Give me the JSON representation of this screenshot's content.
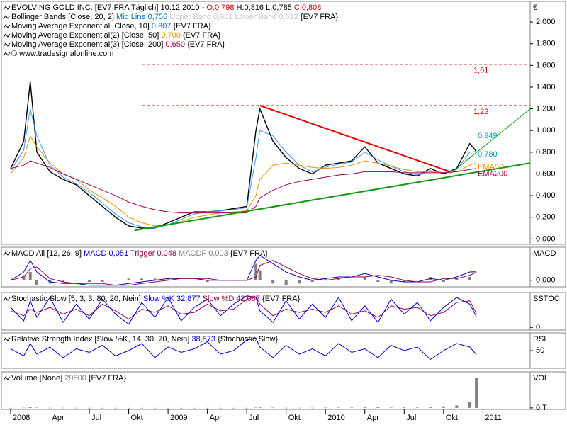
{
  "chart_data": [
    {
      "type": "line",
      "legend": [
        [
          {
            "text": "EVOLVING GOLD INC. [EV7 FRA Täglich] 10.12.2010 - ",
            "color": "#000"
          },
          {
            "text": "O:0,798",
            "color": "#c00"
          },
          {
            "text": " H:0,816 L:0,785 ",
            "color": "#000"
          },
          {
            "text": "C:0,808",
            "color": "#c00"
          }
        ],
        [
          {
            "text": "Bollinger Bands [Close, 20, 2] ",
            "color": "#000"
          },
          {
            "text": "Mid Line 0,756",
            "color": "#0070c0"
          },
          {
            "text": " Upper Band 0,901 Lower Band 0,612",
            "color": "#c8c8c8"
          },
          {
            "text": " {EV7 FRA}",
            "color": "#000"
          }
        ],
        [
          {
            "text": "Moving Average Exponential [Close, 10] ",
            "color": "#000"
          },
          {
            "text": "0,807",
            "color": "#0070c0"
          },
          {
            "text": " {EV7 FRA}",
            "color": "#000"
          }
        ],
        [
          {
            "text": "Moving Average Exponential(2) [Close, 50] ",
            "color": "#000"
          },
          {
            "text": "0,700",
            "color": "#e69500"
          },
          {
            "text": " {EV7 FRA}",
            "color": "#000"
          }
        ],
        [
          {
            "text": "Moving Average Exponential(3) [Close, 200] ",
            "color": "#000"
          },
          {
            "text": "0,650",
            "color": "#99004d"
          },
          {
            "text": " {EV7 FRA}",
            "color": "#000"
          }
        ],
        [
          {
            "text": "© www.tradesignalonline.com",
            "color": "#000"
          }
        ]
      ],
      "axis_label": "€",
      "xlim": [
        -0.7,
        39.6
      ],
      "ylim": [
        -0.05,
        2.19
      ],
      "yticks": [
        {
          "value": 0,
          "label": "0,000"
        },
        {
          "value": 0.2,
          "label": "0,200"
        },
        {
          "value": 0.4,
          "label": "0,400"
        },
        {
          "value": 0.6,
          "label": "0,600"
        },
        {
          "value": 0.8,
          "label": "0,800"
        },
        {
          "value": 1.0,
          "label": "1,000"
        },
        {
          "value": 1.2,
          "label": "1,200"
        },
        {
          "value": 1.4,
          "label": "1,400"
        },
        {
          "value": 1.6,
          "label": "1,600"
        },
        {
          "value": 1.8,
          "label": "1,800"
        },
        {
          "value": 2.0,
          "label": "2,000"
        }
      ],
      "x": [
        0,
        1,
        1.5,
        2,
        3,
        4,
        5,
        6,
        7,
        8,
        9,
        10,
        11,
        12,
        13,
        14,
        15,
        16,
        17,
        18,
        18.7,
        19,
        20,
        21,
        22,
        23,
        24,
        25,
        26,
        27,
        28,
        29,
        30,
        31,
        32,
        33,
        34,
        35,
        35.5
      ],
      "series": [
        {
          "color": "#000000",
          "values": [
            0.65,
            0.9,
            1.45,
            0.8,
            0.62,
            0.55,
            0.5,
            0.4,
            0.3,
            0.2,
            0.12,
            0.1,
            0.1,
            0.15,
            0.2,
            0.25,
            0.25,
            0.26,
            0.28,
            0.3,
            1.0,
            1.2,
            0.9,
            0.75,
            0.65,
            0.6,
            0.68,
            0.7,
            0.72,
            0.85,
            0.7,
            0.65,
            0.6,
            0.58,
            0.65,
            0.6,
            0.65,
            0.88,
            0.808
          ]
        },
        {
          "color": "#3399ff",
          "values": [
            0.63,
            0.82,
            1.2,
            0.95,
            0.68,
            0.57,
            0.51,
            0.43,
            0.33,
            0.23,
            0.15,
            0.11,
            0.1,
            0.13,
            0.18,
            0.23,
            0.25,
            0.26,
            0.27,
            0.29,
            0.75,
            1.0,
            0.95,
            0.8,
            0.68,
            0.62,
            0.66,
            0.69,
            0.71,
            0.8,
            0.73,
            0.67,
            0.62,
            0.59,
            0.63,
            0.61,
            0.64,
            0.8,
            0.807
          ]
        },
        {
          "color": "#e69500",
          "values": [
            0.6,
            0.75,
            0.95,
            0.85,
            0.7,
            0.6,
            0.55,
            0.45,
            0.38,
            0.3,
            0.2,
            0.15,
            0.12,
            0.13,
            0.16,
            0.2,
            0.22,
            0.24,
            0.25,
            0.26,
            0.4,
            0.55,
            0.68,
            0.7,
            0.68,
            0.66,
            0.65,
            0.66,
            0.68,
            0.72,
            0.7,
            0.67,
            0.64,
            0.62,
            0.62,
            0.61,
            0.62,
            0.68,
            0.7
          ]
        },
        {
          "color": "#99004d",
          "values": [
            0.65,
            0.68,
            0.72,
            0.7,
            0.66,
            0.6,
            0.55,
            0.5,
            0.45,
            0.4,
            0.34,
            0.3,
            0.27,
            0.25,
            0.24,
            0.24,
            0.24,
            0.24,
            0.24,
            0.24,
            0.3,
            0.38,
            0.45,
            0.5,
            0.53,
            0.55,
            0.57,
            0.59,
            0.6,
            0.62,
            0.62,
            0.62,
            0.61,
            0.61,
            0.61,
            0.61,
            0.62,
            0.64,
            0.65
          ]
        }
      ],
      "hlines": [
        {
          "value": 1.61,
          "label": "1,61",
          "color": "#cc0000"
        },
        {
          "value": 1.23,
          "label": "1,23",
          "color": "#cc0000"
        }
      ],
      "trendlines": [
        {
          "color": "#ee0000",
          "x": [
            19,
            33.5
          ],
          "y": [
            1.23,
            0.62
          ]
        },
        {
          "color": "#119911",
          "x": [
            9.5,
            39.6
          ],
          "y": [
            0.08,
            0.7
          ]
        },
        {
          "color": "#119911",
          "x": [
            33.5,
            39.6
          ],
          "y": [
            0.6,
            1.2
          ]
        }
      ],
      "annotations": [
        {
          "value": 0.949,
          "label": "0,949",
          "color": "#00a0c0"
        },
        {
          "value": 0.78,
          "label": "0,780",
          "color": "#00a0c0"
        },
        {
          "value": 0.66,
          "label": "EMA50",
          "color": "#e69500"
        },
        {
          "value": 0.6,
          "label": "EMA200",
          "color": "#99004d"
        }
      ]
    },
    {
      "type": "line",
      "legend": [
        [
          {
            "text": "MACD All [12, 26, 9] ",
            "color": "#000"
          },
          {
            "text": "MACD 0,051",
            "color": "#0000cc"
          },
          {
            "text": " Trigger 0,048",
            "color": "#99004d"
          },
          {
            "text": " MACDF 0,003",
            "color": "#808080"
          },
          {
            "text": " {EV7 FRA}",
            "color": "#000"
          }
        ]
      ],
      "axis_label": "MACD",
      "xlim": [
        -0.7,
        39.6
      ],
      "ylim": [
        -0.04,
        0.2
      ],
      "yticks": [
        {
          "value": 0,
          "label": "0,000"
        }
      ],
      "x": [
        0,
        1,
        1.5,
        2,
        3,
        4,
        5,
        6,
        7,
        8,
        9,
        10,
        11,
        12,
        13,
        14,
        15,
        16,
        17,
        18,
        18.7,
        19,
        20,
        21,
        22,
        23,
        24,
        25,
        26,
        27,
        28,
        29,
        30,
        31,
        32,
        33,
        34,
        35,
        35.5
      ],
      "series": [
        {
          "kind": "bar",
          "color": "#808080",
          "values": [
            0,
            0.03,
            0.05,
            -0.03,
            -0.02,
            -0.01,
            0,
            -0.01,
            -0.01,
            0,
            0.01,
            0.01,
            0.01,
            0.01,
            0,
            0,
            -0.01,
            0,
            0,
            0,
            0.1,
            0.06,
            -0.02,
            -0.03,
            -0.02,
            -0.01,
            0.01,
            0.01,
            0,
            0.02,
            -0.01,
            -0.02,
            -0.01,
            0,
            0.02,
            -0.01,
            0.01,
            0.02,
            0.003
          ]
        },
        {
          "color": "#0000cc",
          "values": [
            0,
            0.05,
            0.12,
            0.05,
            -0.01,
            -0.02,
            -0.02,
            -0.03,
            -0.03,
            -0.03,
            -0.02,
            -0.01,
            0,
            0.01,
            0.01,
            0.01,
            0,
            0,
            0,
            0,
            0.12,
            0.15,
            0.1,
            0.05,
            0.02,
            0,
            0.01,
            0.02,
            0.02,
            0.04,
            0.02,
            0,
            -0.01,
            -0.01,
            0.01,
            0,
            0.02,
            0.05,
            0.051
          ]
        },
        {
          "color": "#99004d",
          "values": [
            0,
            0.02,
            0.07,
            0.08,
            0.01,
            -0.01,
            -0.02,
            -0.02,
            -0.02,
            -0.03,
            -0.03,
            -0.02,
            -0.01,
            0,
            0.01,
            0.01,
            0.01,
            0,
            0,
            0,
            0.02,
            0.09,
            0.12,
            0.08,
            0.04,
            0.01,
            0,
            0.01,
            0.02,
            0.02,
            0.03,
            0.02,
            0,
            -0.01,
            -0.01,
            0.01,
            0.01,
            0.03,
            0.048
          ]
        }
      ]
    },
    {
      "type": "line",
      "legend": [
        [
          {
            "text": "Stochastic Slow [5, 3, 3, 80, 20, Nein] ",
            "color": "#000"
          },
          {
            "text": "Slow %K 32,877",
            "color": "#0000cc"
          },
          {
            "text": " Slow %D 42,067",
            "color": "#99004d"
          },
          {
            "text": " {EV7 FRA}",
            "color": "#000"
          }
        ]
      ],
      "axis_label": "SSTOC",
      "xlim": [
        -0.7,
        39.6
      ],
      "ylim": [
        -8,
        105
      ],
      "yticks": [
        0
      ],
      "x": [
        0,
        1,
        1.5,
        2,
        3,
        4,
        5,
        6,
        7,
        8,
        9,
        10,
        11,
        12,
        13,
        14,
        15,
        16,
        17,
        18,
        18.7,
        19,
        20,
        21,
        22,
        23,
        24,
        25,
        26,
        27,
        28,
        29,
        30,
        31,
        32,
        33,
        34,
        35,
        35.5
      ],
      "series": [
        {
          "color": "#99004d",
          "values": [
            50,
            35,
            55,
            45,
            60,
            40,
            55,
            35,
            70,
            50,
            25,
            55,
            45,
            65,
            40,
            45,
            70,
            50,
            55,
            85,
            92,
            70,
            35,
            55,
            45,
            55,
            45,
            65,
            40,
            50,
            30,
            65,
            55,
            60,
            35,
            45,
            75,
            80,
            42
          ]
        },
        {
          "color": "#0000cc",
          "values": [
            60,
            20,
            80,
            30,
            90,
            15,
            70,
            25,
            85,
            40,
            10,
            75,
            30,
            90,
            20,
            60,
            85,
            35,
            70,
            95,
            90,
            50,
            15,
            80,
            25,
            70,
            30,
            90,
            20,
            65,
            15,
            85,
            40,
            75,
            20,
            60,
            90,
            70,
            33
          ]
        }
      ]
    },
    {
      "type": "line",
      "legend": [
        [
          {
            "text": "Relative Strength Index [Slow %K, 14, 30, 70, Nein] ",
            "color": "#000"
          },
          {
            "text": "38,873",
            "color": "#0000cc"
          },
          {
            "text": " {Stochastic Slow}",
            "color": "#000"
          }
        ]
      ],
      "axis_label": "RSI",
      "xlim": [
        -0.7,
        39.6
      ],
      "ylim": [
        0,
        100
      ],
      "yticks": [
        50
      ],
      "x": [
        0,
        1,
        1.5,
        2,
        3,
        4,
        5,
        6,
        7,
        8,
        9,
        10,
        11,
        12,
        13,
        14,
        15,
        16,
        17,
        18,
        18.7,
        19,
        20,
        21,
        22,
        23,
        24,
        25,
        26,
        27,
        28,
        29,
        30,
        31,
        32,
        33,
        34,
        35,
        35.5
      ],
      "series": [
        {
          "color": "#0000cc",
          "values": [
            55,
            35,
            70,
            40,
            60,
            30,
            55,
            45,
            65,
            35,
            50,
            70,
            30,
            60,
            45,
            55,
            75,
            40,
            50,
            80,
            85,
            60,
            30,
            65,
            40,
            55,
            35,
            70,
            45,
            55,
            30,
            65,
            50,
            60,
            25,
            50,
            70,
            60,
            39
          ]
        }
      ]
    },
    {
      "type": "bar",
      "legend": [
        [
          {
            "text": "Volume [None] ",
            "color": "#000"
          },
          {
            "text": "29800",
            "color": "#808080"
          },
          {
            "text": " {EV7 FRA}",
            "color": "#000"
          }
        ]
      ],
      "axis_label": "VOL",
      "xlim": [
        -0.7,
        39.6
      ],
      "ylim": [
        -1500,
        36000
      ],
      "yticks": [
        {
          "value": 0,
          "label": "0 T"
        }
      ],
      "xticks": [
        {
          "value": 0,
          "label": "2008"
        },
        {
          "value": 3,
          "label": "Apr"
        },
        {
          "value": 6,
          "label": "Jul"
        },
        {
          "value": 9,
          "label": "Okt"
        },
        {
          "value": 12,
          "label": "2009"
        },
        {
          "value": 15,
          "label": "Apr"
        },
        {
          "value": 18,
          "label": "Jul"
        },
        {
          "value": 21,
          "label": "Okt"
        },
        {
          "value": 24,
          "label": "2010"
        },
        {
          "value": 27,
          "label": "Apr"
        },
        {
          "value": 30,
          "label": "Jul"
        },
        {
          "value": 33,
          "label": "Okt"
        },
        {
          "value": 36,
          "label": "2011"
        }
      ],
      "x": [
        0,
        1,
        1.5,
        2,
        3,
        4,
        5,
        6,
        7,
        8,
        9,
        10,
        11,
        12,
        13,
        14,
        15,
        16,
        17,
        18,
        18.7,
        19,
        20,
        21,
        22,
        23,
        24,
        25,
        26,
        27,
        28,
        29,
        30,
        31,
        32,
        33,
        34,
        35,
        35.5
      ],
      "series": [
        {
          "kind": "bar",
          "color": "#808080",
          "values": [
            0,
            200,
            800,
            300,
            100,
            100,
            50,
            50,
            0,
            0,
            0,
            0,
            0,
            0,
            0,
            0,
            0,
            0,
            0,
            0,
            300,
            500,
            200,
            100,
            100,
            100,
            300,
            400,
            300,
            900,
            600,
            300,
            500,
            400,
            800,
            1500,
            2500,
            6000,
            29800
          ]
        }
      ]
    }
  ]
}
